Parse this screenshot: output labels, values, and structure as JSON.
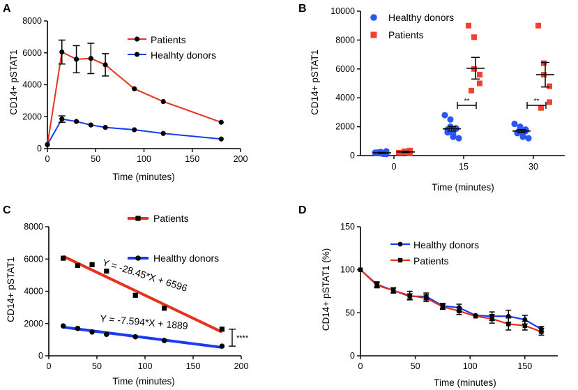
{
  "colors": {
    "red": "#e8301e",
    "blue": "#1a3cf0",
    "scatter_red": "#f2412f",
    "scatter_blue": "#2a56f5"
  },
  "chart_data": [
    {
      "panel": "A",
      "type": "line",
      "xlabel": "Time (minutes)",
      "ylabel": "CD14+ pSTAT1",
      "xlim": [
        0,
        200
      ],
      "ylim": [
        0,
        8000
      ],
      "xticks": [
        0,
        50,
        100,
        150,
        200
      ],
      "yticks": [
        0,
        2000,
        4000,
        6000,
        8000
      ],
      "series": [
        {
          "name": "Patients",
          "color": "red",
          "x": [
            0,
            15,
            30,
            45,
            60,
            90,
            120,
            180
          ],
          "y": [
            250,
            6050,
            5600,
            5650,
            5250,
            3750,
            2950,
            1650
          ],
          "err": [
            0,
            750,
            850,
            950,
            700,
            0,
            0,
            0
          ]
        },
        {
          "name": "Healhty donors",
          "color": "blue",
          "x": [
            0,
            15,
            30,
            45,
            60,
            90,
            120,
            180
          ],
          "y": [
            250,
            1850,
            1700,
            1480,
            1330,
            1180,
            950,
            600
          ],
          "err": [
            0,
            200,
            0,
            0,
            0,
            0,
            0,
            0
          ]
        }
      ]
    },
    {
      "panel": "B",
      "type": "scatter",
      "xlabel": "Time (minutes)",
      "ylabel": "CD14+ pSTAT1",
      "ylim": [
        0,
        10000
      ],
      "categories": [
        "0",
        "15",
        "30"
      ],
      "yticks": [
        0,
        2000,
        4000,
        6000,
        8000,
        10000
      ],
      "series": [
        {
          "name": "Healthy donors",
          "marker": "circle",
          "color": "blue",
          "groups": [
            [
              200,
              150,
              250,
              100,
              300,
              180,
              220,
              120
            ],
            [
              2800,
              2500,
              2000,
              1900,
              1850,
              1800,
              1600,
              1500,
              1300,
              1200
            ],
            [
              2200,
              2000,
              1900,
              1800,
              1700,
              1600,
              1550,
              1500,
              1300,
              1200
            ]
          ],
          "means": [
            190,
            1850,
            1700
          ],
          "errs": [
            30,
            150,
            100
          ]
        },
        {
          "name": "Patients",
          "marker": "square",
          "color": "red",
          "groups": [
            [
              200,
              250,
              300,
              150,
              350,
              200
            ],
            [
              9000,
              8200,
              6000,
              5600,
              5000,
              4500
            ],
            [
              9000,
              6400,
              5600,
              4800,
              3700,
              3300
            ]
          ],
          "means": [
            250,
            6050,
            5600
          ],
          "errs": [
            40,
            750,
            850
          ]
        }
      ],
      "sig": [
        {
          "category": "15",
          "label": "**"
        },
        {
          "category": "30",
          "label": "**"
        }
      ]
    },
    {
      "panel": "C",
      "type": "line",
      "xlabel": "Time (minutes)",
      "ylabel": "CD14+ pSTAT1",
      "xlim": [
        0,
        200
      ],
      "ylim": [
        0,
        8000
      ],
      "xticks": [
        0,
        50,
        100,
        150,
        200
      ],
      "yticks": [
        0,
        2000,
        4000,
        6000,
        8000
      ],
      "series": [
        {
          "name": "Patients",
          "marker": "square",
          "color": "red",
          "x": [
            15,
            30,
            45,
            60,
            90,
            120,
            180
          ],
          "y": [
            6050,
            5600,
            5650,
            5250,
            3750,
            2950,
            1650
          ],
          "fit": {
            "slope": -28.45,
            "intercept": 6596
          }
        },
        {
          "name": "Healthy donors",
          "marker": "circle",
          "color": "blue",
          "x": [
            15,
            30,
            45,
            60,
            90,
            120,
            180
          ],
          "y": [
            1850,
            1700,
            1480,
            1330,
            1180,
            950,
            600
          ],
          "fit": {
            "slope": -7.594,
            "intercept": 1889
          }
        }
      ],
      "annotations": {
        "eq_patients": "Y = -28.45*X + 6596",
        "eq_healthy": "Y = -7.594*X + 1889",
        "sig": "****"
      }
    },
    {
      "panel": "D",
      "type": "line",
      "xlabel": "Time (minutes)",
      "ylabel": "CD14+ pSTAT1 (%)",
      "xlim": [
        0,
        180
      ],
      "ylim": [
        0,
        150
      ],
      "xticks": [
        0,
        50,
        100,
        150
      ],
      "yticks": [
        0,
        50,
        100,
        150
      ],
      "series": [
        {
          "name": "Healthy donors",
          "marker": "circle",
          "color": "blue",
          "x": [
            0,
            15,
            30,
            45,
            60,
            75,
            90,
            105,
            120,
            135,
            150,
            165
          ],
          "y": [
            100,
            83,
            76,
            69,
            69,
            58,
            56,
            47,
            46,
            46,
            42,
            31
          ],
          "err": [
            0,
            3,
            3,
            3,
            4,
            3,
            4,
            0,
            5,
            7,
            5,
            3
          ]
        },
        {
          "name": "Patients",
          "marker": "square",
          "color": "red",
          "x": [
            0,
            15,
            30,
            45,
            60,
            75,
            90,
            105,
            120,
            135,
            150,
            165
          ],
          "y": [
            100,
            82,
            76,
            70,
            67,
            57,
            52,
            46,
            43,
            37,
            35,
            28
          ],
          "err": [
            0,
            3,
            3,
            5,
            4,
            3,
            4,
            0,
            5,
            7,
            5,
            4
          ]
        }
      ]
    }
  ]
}
